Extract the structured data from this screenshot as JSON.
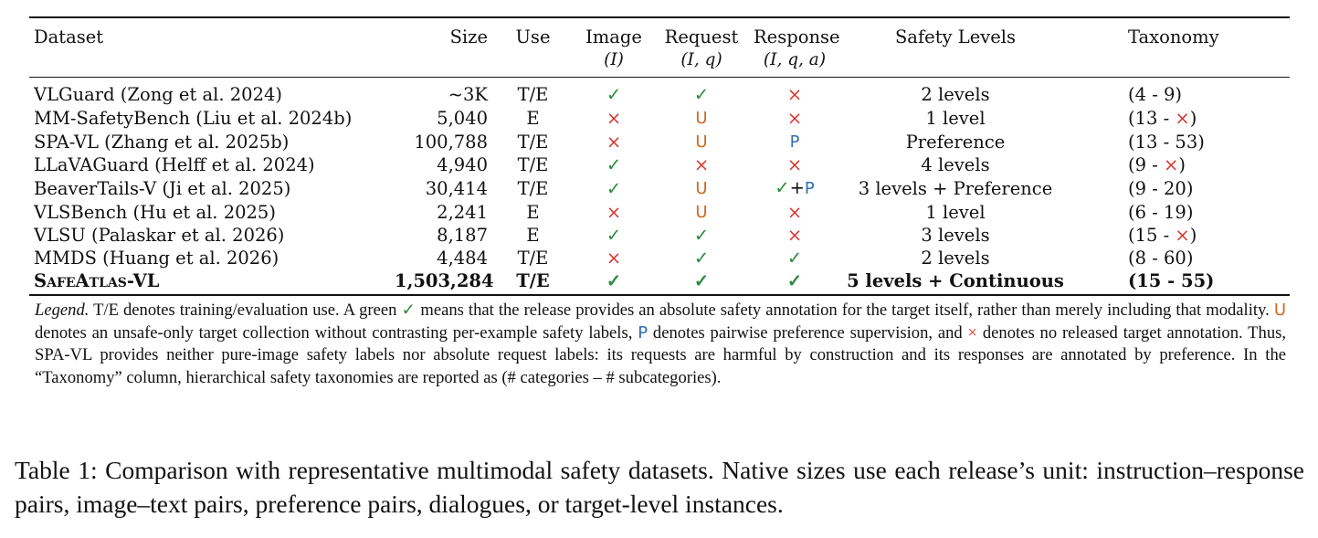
{
  "table": {
    "headers": {
      "dataset": "Dataset",
      "size": "Size",
      "use": "Use",
      "image": "Image",
      "image_sub": "(I)",
      "request": "Request",
      "request_sub": "(I, q)",
      "response": "Response",
      "response_sub": "(I, q, a)",
      "safety_levels": "Safety Levels",
      "taxonomy": "Taxonomy"
    },
    "rows": [
      {
        "dataset": "VLGuard (Zong et al. 2024)",
        "size": "~3K",
        "use": "T/E",
        "image": "✓",
        "request": "✓",
        "response": "×",
        "levels": "2 levels",
        "tax_open": "(4 - 9)",
        "tax_val": "",
        "tax_close": ""
      },
      {
        "dataset": "MM-SafetyBench (Liu et al. 2024b)",
        "size": "5,040",
        "use": "E",
        "image": "×",
        "request": "U",
        "response": "×",
        "levels": "1 level",
        "tax_open": "(13 - ",
        "tax_val": "×",
        "tax_close": ")"
      },
      {
        "dataset": "SPA-VL (Zhang et al. 2025b)",
        "size": "100,788",
        "use": "T/E",
        "image": "×",
        "request": "U",
        "response": "P",
        "levels": "Preference",
        "tax_open": "(13 - 53)",
        "tax_val": "",
        "tax_close": ""
      },
      {
        "dataset": "LLaVAGuard (Helff et al. 2024)",
        "size": "4,940",
        "use": "T/E",
        "image": "✓",
        "request": "×",
        "response": "×",
        "levels": "4 levels",
        "tax_open": "(9 - ",
        "tax_val": "×",
        "tax_close": ")"
      },
      {
        "dataset": "BeaverTails-V (Ji et al. 2025)",
        "size": "30,414",
        "use": "T/E",
        "image": "✓",
        "request": "U",
        "response": "✓+P",
        "levels": "3 levels + Preference",
        "tax_open": "(9 - 20)",
        "tax_val": "",
        "tax_close": ""
      },
      {
        "dataset": "VLSBench (Hu et al. 2025)",
        "size": "2,241",
        "use": "E",
        "image": "×",
        "request": "U",
        "response": "×",
        "levels": "1 level",
        "tax_open": "(6 - 19)",
        "tax_val": "",
        "tax_close": ""
      },
      {
        "dataset": "VLSU (Palaskar et al. 2026)",
        "size": "8,187",
        "use": "E",
        "image": "✓",
        "request": "✓",
        "response": "×",
        "levels": "3 levels",
        "tax_open": "(15 - ",
        "tax_val": "×",
        "tax_close": ")"
      },
      {
        "dataset": "MMDS (Huang et al. 2026)",
        "size": "4,484",
        "use": "T/E",
        "image": "×",
        "request": "✓",
        "response": "✓",
        "levels": "2 levels",
        "tax_open": "(8 - 60)",
        "tax_val": "",
        "tax_close": ""
      }
    ],
    "ours": {
      "dataset_sc": "SafeAtlas",
      "dataset_rest": "-VL",
      "size": "1,503,284",
      "use": "T/E",
      "image": "✓",
      "request": "✓",
      "response": "✓",
      "levels": "5 levels + Continuous",
      "taxonomy": "(15 - 55)"
    }
  },
  "legend": {
    "label": "Legend.",
    "t1": " T/E denotes training/evaluation use. A green ",
    "check": "✓",
    "t2": " means that the release provides an absolute safety annotation for the target itself, rather than merely including that modality. ",
    "u": "U",
    "t3": " denotes an unsafe-only target collection without contrasting per-example safety labels, ",
    "p": "P",
    "t4": " denotes pairwise preference supervision, and ",
    "cross": "×",
    "t5": " denotes no released target annotation. Thus, SPA-VL provides neither pure-image safety labels nor absolute request labels: its requests are harmful by construction and its responses are annotated by preference. In the “Taxonomy” column, hierarchical safety taxonomies are reported as (# categories – # subcategories)."
  },
  "caption": "Table 1: Comparison with representative multimodal safety datasets. Native sizes use each release’s unit: instruction–response pairs, image–text pairs, preference pairs, dialogues, or target-level instances.",
  "colors": {
    "check": "#2e8b3e",
    "cross": "#d7322a",
    "unsafe_only": "#d2691e",
    "preference": "#2f6fb0"
  }
}
